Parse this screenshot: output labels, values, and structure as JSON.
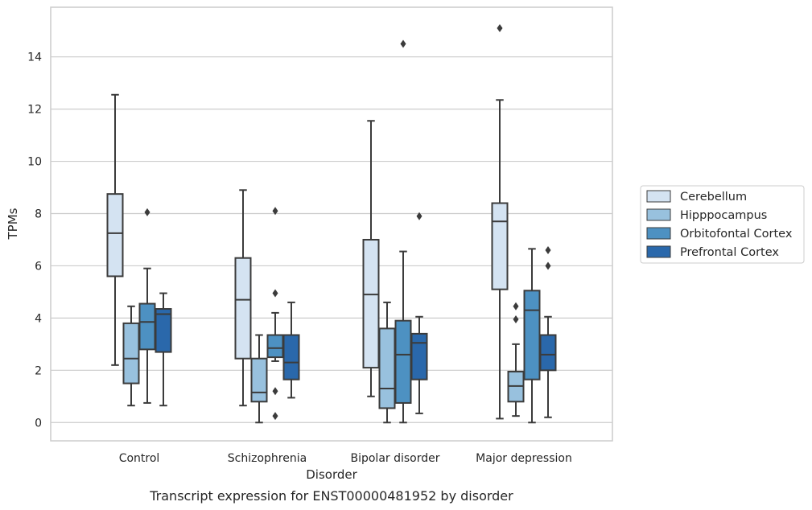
{
  "chart_data": {
    "type": "box",
    "xlabel": "Disorder",
    "ylabel": "TPMs",
    "caption": "Transcript expression for ENST00000481952 by disorder",
    "ylim": [
      -0.7,
      15.9
    ],
    "yticks": [
      0,
      2,
      4,
      6,
      8,
      10,
      12,
      14
    ],
    "grid": "horizontal",
    "legend_position": "right",
    "categories": [
      "Control",
      "Schizophrenia",
      "Bipolar disorder",
      "Major depression"
    ],
    "series": [
      {
        "name": "Cerebellum",
        "color": "#d4e3f2",
        "boxes": [
          {
            "whisker_low": 2.2,
            "q1": 5.6,
            "median": 7.25,
            "q3": 8.75,
            "whisker_high": 12.55,
            "outliers": []
          },
          {
            "whisker_low": 0.65,
            "q1": 2.45,
            "median": 4.7,
            "q3": 6.3,
            "whisker_high": 8.9,
            "outliers": []
          },
          {
            "whisker_low": 1.0,
            "q1": 2.1,
            "median": 4.9,
            "q3": 7.0,
            "whisker_high": 11.55,
            "outliers": []
          },
          {
            "whisker_low": 0.15,
            "q1": 5.1,
            "median": 7.7,
            "q3": 8.4,
            "whisker_high": 12.35,
            "outliers": [
              15.1
            ]
          }
        ]
      },
      {
        "name": "Hipppocampus",
        "color": "#98c1de",
        "boxes": [
          {
            "whisker_low": 0.65,
            "q1": 1.5,
            "median": 2.45,
            "q3": 3.8,
            "whisker_high": 4.45,
            "outliers": []
          },
          {
            "whisker_low": 0.0,
            "q1": 0.8,
            "median": 1.15,
            "q3": 2.45,
            "whisker_high": 3.35,
            "outliers": []
          },
          {
            "whisker_low": 0.0,
            "q1": 0.55,
            "median": 1.3,
            "q3": 3.6,
            "whisker_high": 4.6,
            "outliers": []
          },
          {
            "whisker_low": 0.25,
            "q1": 0.8,
            "median": 1.4,
            "q3": 1.95,
            "whisker_high": 3.0,
            "outliers": [
              4.45,
              3.95
            ]
          }
        ]
      },
      {
        "name": "Orbitofontal Cortex",
        "color": "#4d91c2",
        "boxes": [
          {
            "whisker_low": 0.75,
            "q1": 2.8,
            "median": 3.85,
            "q3": 4.55,
            "whisker_high": 5.9,
            "outliers": [
              8.05
            ]
          },
          {
            "whisker_low": 2.35,
            "q1": 2.5,
            "median": 2.85,
            "q3": 3.35,
            "whisker_high": 4.2,
            "outliers": [
              8.1,
              4.95,
              1.2,
              0.25
            ]
          },
          {
            "whisker_low": 0.0,
            "q1": 0.75,
            "median": 2.6,
            "q3": 3.9,
            "whisker_high": 6.55,
            "outliers": [
              14.5
            ]
          },
          {
            "whisker_low": 0.0,
            "q1": 1.65,
            "median": 4.3,
            "q3": 5.05,
            "whisker_high": 6.65,
            "outliers": []
          }
        ]
      },
      {
        "name": "Prefrontal Cortex",
        "color": "#2a68ab",
        "boxes": [
          {
            "whisker_low": 0.65,
            "q1": 2.7,
            "median": 4.15,
            "q3": 4.35,
            "whisker_high": 4.95,
            "outliers": []
          },
          {
            "whisker_low": 0.95,
            "q1": 1.65,
            "median": 2.3,
            "q3": 3.35,
            "whisker_high": 4.6,
            "outliers": []
          },
          {
            "whisker_low": 0.35,
            "q1": 1.65,
            "median": 3.05,
            "q3": 3.4,
            "whisker_high": 4.05,
            "outliers": [
              7.9
            ]
          },
          {
            "whisker_low": 0.2,
            "q1": 2.0,
            "median": 2.6,
            "q3": 3.35,
            "whisker_high": 4.05,
            "outliers": [
              6.6,
              6.0
            ]
          }
        ]
      }
    ]
  }
}
